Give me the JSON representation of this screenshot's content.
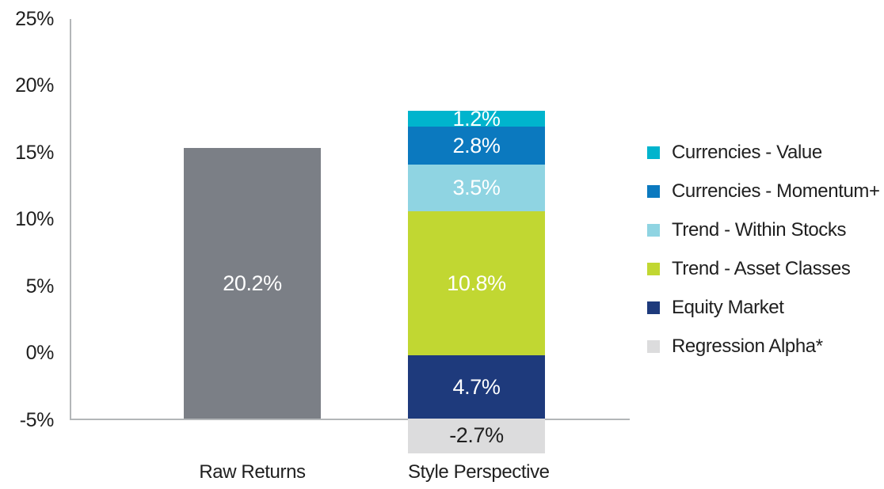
{
  "chart_data": {
    "type": "bar",
    "stacked": true,
    "title": "",
    "xlabel": "",
    "ylabel": "",
    "grid": false,
    "legend_position": "right",
    "ylim": [
      -7.5,
      25
    ],
    "baseline_pct": -4.9,
    "ytick_suffix": "%",
    "yticks": [
      25,
      20,
      15,
      10,
      5,
      0,
      -5
    ],
    "categories": [
      "Raw Returns",
      "Style Perspective"
    ],
    "bars": [
      {
        "category": "Raw Returns",
        "segments": [
          {
            "name": "Raw Returns",
            "value": 20.2,
            "label": "20.2%",
            "from": -4.9,
            "to": 15.3,
            "color": "#7b7f86",
            "label_color": "#ffffff"
          }
        ]
      },
      {
        "category": "Style Perspective",
        "segments": [
          {
            "name": "Regression Alpha*",
            "value": -2.7,
            "label": "-2.7%",
            "from": -7.5,
            "to": -4.9,
            "color": "#dcdcdd",
            "label_color": "#1f1f1f"
          },
          {
            "name": "Equity Market",
            "value": 4.7,
            "label": "4.7%",
            "from": -4.9,
            "to": -0.2,
            "color": "#1e3a7c",
            "label_color": "#ffffff"
          },
          {
            "name": "Trend - Asset Classes",
            "value": 10.8,
            "label": "10.8%",
            "from": -0.2,
            "to": 10.6,
            "color": "#c1d732",
            "label_color": "#ffffff"
          },
          {
            "name": "Trend - Within Stocks",
            "value": 3.5,
            "label": "3.5%",
            "from": 10.6,
            "to": 14.1,
            "color": "#8fd4e2",
            "label_color": "#ffffff"
          },
          {
            "name": "Currencies - Momentum+",
            "value": 2.8,
            "label": "2.8%",
            "from": 14.1,
            "to": 16.9,
            "color": "#0b79bf",
            "label_color": "#ffffff"
          },
          {
            "name": "Currencies - Value",
            "value": 1.2,
            "label": "1.2%",
            "from": 16.9,
            "to": 18.1,
            "color": "#00b4cd",
            "label_color": "#ffffff"
          }
        ]
      }
    ],
    "legend": [
      {
        "label": "Currencies - Value",
        "color": "#00b4cd"
      },
      {
        "label": "Currencies - Momentum+",
        "color": "#0b79bf"
      },
      {
        "label": "Trend - Within Stocks",
        "color": "#8fd4e2"
      },
      {
        "label": "Trend - Asset Classes",
        "color": "#c1d732"
      },
      {
        "label": "Equity Market",
        "color": "#1e3a7c"
      },
      {
        "label": "Regression Alpha*",
        "color": "#dcdcdd"
      }
    ],
    "axis_color": "#b3b6b8"
  }
}
